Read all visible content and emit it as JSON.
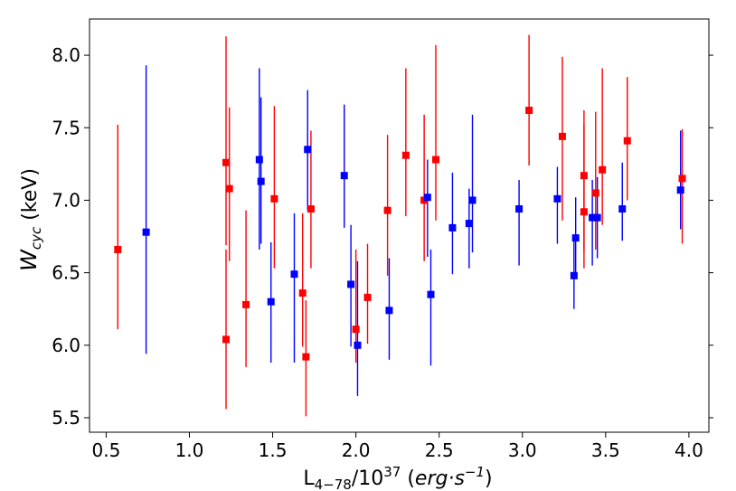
{
  "chart_data": {
    "type": "scatter",
    "xlabel": "L",
    "xlabel_sub": "4−78",
    "xlabel_mid": "/10",
    "xlabel_sup": "37",
    "xlabel_unit_open": " (",
    "xlabel_unit_math": "erg·s",
    "xlabel_unit_sup": "−1",
    "xlabel_unit_close": ")",
    "ylabel": "W",
    "ylabel_sub": "cyc",
    "ylabel_unit": " (keV)",
    "xlim": [
      0.4,
      4.12
    ],
    "ylim": [
      5.4,
      8.25
    ],
    "xticks": [
      0.5,
      1.0,
      1.5,
      2.0,
      2.5,
      3.0,
      3.5,
      4.0
    ],
    "xtick_labels": [
      "0.5",
      "1.0",
      "1.5",
      "2.0",
      "2.5",
      "3.0",
      "3.5",
      "4.0"
    ],
    "yticks": [
      5.5,
      6.0,
      6.5,
      7.0,
      7.5,
      8.0
    ],
    "ytick_labels": [
      "5.5",
      "6.0",
      "6.5",
      "7.0",
      "7.5",
      "8.0"
    ],
    "grid": false,
    "series": [
      {
        "color": "#ff0000",
        "points": [
          {
            "x": 0.57,
            "y": 6.66,
            "lo": 6.11,
            "hi": 7.52
          },
          {
            "x": 1.22,
            "y": 7.26,
            "lo": 6.69,
            "hi": 8.13
          },
          {
            "x": 1.22,
            "y": 6.04,
            "lo": 5.56,
            "hi": 6.66
          },
          {
            "x": 1.24,
            "y": 7.08,
            "lo": 6.58,
            "hi": 7.64
          },
          {
            "x": 1.34,
            "y": 6.28,
            "lo": 5.85,
            "hi": 6.93
          },
          {
            "x": 1.51,
            "y": 7.01,
            "lo": 6.53,
            "hi": 7.65
          },
          {
            "x": 1.68,
            "y": 6.36,
            "lo": 5.99,
            "hi": 6.91
          },
          {
            "x": 1.7,
            "y": 5.92,
            "lo": 5.51,
            "hi": 6.31
          },
          {
            "x": 1.73,
            "y": 6.94,
            "lo": 6.53,
            "hi": 7.48
          },
          {
            "x": 2.0,
            "y": 6.11,
            "lo": 5.88,
            "hi": 6.66
          },
          {
            "x": 2.07,
            "y": 6.33,
            "lo": 6.01,
            "hi": 6.7
          },
          {
            "x": 2.19,
            "y": 6.93,
            "lo": 6.48,
            "hi": 7.45
          },
          {
            "x": 2.3,
            "y": 7.31,
            "lo": 6.89,
            "hi": 7.91
          },
          {
            "x": 2.41,
            "y": 7.0,
            "lo": 6.58,
            "hi": 7.59
          },
          {
            "x": 2.48,
            "y": 7.28,
            "lo": 6.86,
            "hi": 8.07
          },
          {
            "x": 3.04,
            "y": 7.62,
            "lo": 7.24,
            "hi": 8.14
          },
          {
            "x": 3.24,
            "y": 7.44,
            "lo": 6.86,
            "hi": 7.99
          },
          {
            "x": 3.37,
            "y": 7.17,
            "lo": 6.65,
            "hi": 7.62
          },
          {
            "x": 3.37,
            "y": 6.92,
            "lo": 6.53,
            "hi": 7.52
          },
          {
            "x": 3.44,
            "y": 7.05,
            "lo": 6.66,
            "hi": 7.61
          },
          {
            "x": 3.48,
            "y": 7.21,
            "lo": 6.83,
            "hi": 7.91
          },
          {
            "x": 3.63,
            "y": 7.41,
            "lo": 7.0,
            "hi": 7.85
          },
          {
            "x": 3.96,
            "y": 7.15,
            "lo": 6.7,
            "hi": 7.49
          }
        ]
      },
      {
        "color": "#0000ff",
        "points": [
          {
            "x": 0.74,
            "y": 6.78,
            "lo": 5.94,
            "hi": 7.93
          },
          {
            "x": 1.42,
            "y": 7.28,
            "lo": 6.66,
            "hi": 7.91
          },
          {
            "x": 1.43,
            "y": 7.13,
            "lo": 6.7,
            "hi": 7.71
          },
          {
            "x": 1.49,
            "y": 6.3,
            "lo": 5.88,
            "hi": 6.71
          },
          {
            "x": 1.63,
            "y": 6.49,
            "lo": 5.88,
            "hi": 6.91
          },
          {
            "x": 1.71,
            "y": 7.35,
            "lo": 6.93,
            "hi": 7.76
          },
          {
            "x": 1.93,
            "y": 7.17,
            "lo": 6.81,
            "hi": 7.66
          },
          {
            "x": 1.97,
            "y": 6.42,
            "lo": 5.99,
            "hi": 6.83
          },
          {
            "x": 2.01,
            "y": 6.0,
            "lo": 5.65,
            "hi": 6.58
          },
          {
            "x": 2.2,
            "y": 6.24,
            "lo": 5.9,
            "hi": 6.6
          },
          {
            "x": 2.43,
            "y": 7.02,
            "lo": 6.61,
            "hi": 7.28
          },
          {
            "x": 2.45,
            "y": 6.35,
            "lo": 5.86,
            "hi": 6.66
          },
          {
            "x": 2.58,
            "y": 6.81,
            "lo": 6.49,
            "hi": 7.19
          },
          {
            "x": 2.68,
            "y": 6.84,
            "lo": 6.53,
            "hi": 7.08
          },
          {
            "x": 2.7,
            "y": 7.0,
            "lo": 6.64,
            "hi": 7.59
          },
          {
            "x": 2.98,
            "y": 6.94,
            "lo": 6.55,
            "hi": 7.14
          },
          {
            "x": 3.21,
            "y": 7.01,
            "lo": 6.7,
            "hi": 7.23
          },
          {
            "x": 3.31,
            "y": 6.48,
            "lo": 6.25,
            "hi": 6.74
          },
          {
            "x": 3.32,
            "y": 6.74,
            "lo": 6.48,
            "hi": 7.02
          },
          {
            "x": 3.42,
            "y": 6.88,
            "lo": 6.55,
            "hi": 7.14
          },
          {
            "x": 3.45,
            "y": 6.88,
            "lo": 6.6,
            "hi": 7.16
          },
          {
            "x": 3.6,
            "y": 6.94,
            "lo": 6.72,
            "hi": 7.26
          },
          {
            "x": 3.95,
            "y": 7.07,
            "lo": 6.8,
            "hi": 7.48
          }
        ]
      }
    ]
  }
}
